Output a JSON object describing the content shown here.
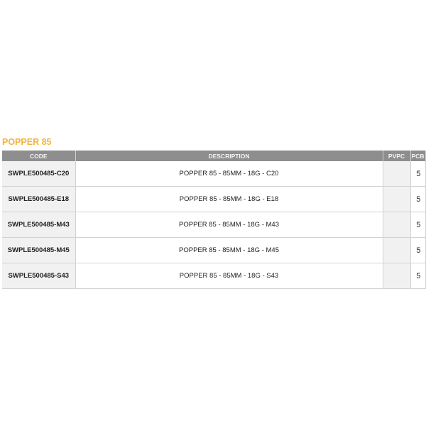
{
  "title": "POPPER 85",
  "columns": {
    "code": "CODE",
    "description": "DESCRIPTION",
    "pvpc": "PVPC",
    "pcb": "PCB"
  },
  "rows": [
    {
      "code": "SWPLE500485-C20",
      "description": "POPPER 85 - 85MM - 18G - C20",
      "pvpc": "",
      "pcb": "5"
    },
    {
      "code": "SWPLE500485-E18",
      "description": "POPPER 85 - 85MM - 18G - E18",
      "pvpc": "",
      "pcb": "5"
    },
    {
      "code": "SWPLE500485-M43",
      "description": "POPPER 85 - 85MM - 18G - M43",
      "pvpc": "",
      "pcb": "5"
    },
    {
      "code": "SWPLE500485-M45",
      "description": "POPPER 85 - 85MM - 18G - M45",
      "pvpc": "",
      "pcb": "5"
    },
    {
      "code": "SWPLE500485-S43",
      "description": "POPPER 85 - 85MM - 18G - S43",
      "pvpc": "",
      "pcb": "5"
    }
  ],
  "colors": {
    "title": "#f2b43a",
    "header_bg": "#8e8e8e"
  }
}
